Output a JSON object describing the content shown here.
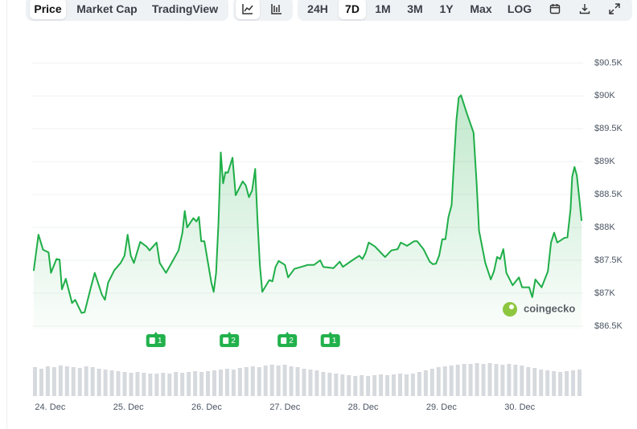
{
  "toolbar": {
    "views": [
      "Price",
      "Market Cap",
      "TradingView"
    ],
    "selected_view": 0,
    "ranges": [
      "24H",
      "7D",
      "1M",
      "3M",
      "1Y",
      "Max",
      "LOG"
    ],
    "selected_range": 1
  },
  "chart_data": {
    "type": "line",
    "color": "#1fae48",
    "grid": true,
    "watermark": "coingecko",
    "xlim": [
      23.77,
      30.81
    ],
    "ylim": [
      86450,
      90700
    ],
    "yticks": [
      {
        "value": 86500,
        "label": "$86.5K"
      },
      {
        "value": 87000,
        "label": "$87K"
      },
      {
        "value": 87500,
        "label": "$87.5K"
      },
      {
        "value": 88000,
        "label": "$88K"
      },
      {
        "value": 88500,
        "label": "$88.5K"
      },
      {
        "value": 89000,
        "label": "$89K"
      },
      {
        "value": 89500,
        "label": "$89.5K"
      },
      {
        "value": 90000,
        "label": "$90K"
      },
      {
        "value": 90500,
        "label": "$90.5K"
      }
    ],
    "xticks": [
      {
        "value": 24,
        "label": "24. Dec"
      },
      {
        "value": 25,
        "label": "25. Dec"
      },
      {
        "value": 26,
        "label": "26. Dec"
      },
      {
        "value": 27,
        "label": "27. Dec"
      },
      {
        "value": 28,
        "label": "28. Dec"
      },
      {
        "value": 29,
        "label": "29. Dec"
      },
      {
        "value": 30,
        "label": "30. Dec"
      }
    ],
    "x": [
      23.79,
      23.85,
      23.91,
      23.98,
      24.01,
      24.08,
      24.12,
      24.15,
      24.2,
      24.28,
      24.32,
      24.4,
      24.44,
      24.52,
      24.57,
      24.66,
      24.7,
      24.74,
      24.82,
      24.9,
      24.95,
      24.99,
      25.03,
      25.07,
      25.15,
      25.23,
      25.27,
      25.36,
      25.4,
      25.48,
      25.56,
      25.64,
      25.69,
      25.72,
      25.75,
      25.83,
      25.87,
      25.9,
      25.93,
      25.97,
      26.06,
      26.09,
      26.12,
      26.15,
      26.18,
      26.21,
      26.24,
      26.27,
      26.33,
      26.37,
      26.46,
      26.5,
      26.54,
      26.58,
      26.62,
      26.65,
      26.68,
      26.71,
      26.8,
      26.84,
      26.88,
      26.92,
      27.0,
      27.04,
      27.12,
      27.21,
      27.29,
      27.37,
      27.45,
      27.49,
      27.62,
      27.7,
      27.74,
      27.86,
      27.95,
      27.99,
      28.03,
      28.07,
      28.15,
      28.23,
      28.28,
      28.36,
      28.44,
      28.48,
      28.56,
      28.65,
      28.69,
      28.77,
      28.85,
      28.89,
      28.93,
      28.97,
      29.01,
      29.05,
      29.09,
      29.13,
      29.16,
      29.19,
      29.22,
      29.25,
      29.32,
      29.41,
      29.45,
      29.48,
      29.56,
      29.63,
      29.67,
      29.71,
      29.75,
      29.79,
      29.83,
      29.91,
      29.99,
      30.03,
      30.12,
      30.16,
      30.2,
      30.28,
      30.36,
      30.4,
      30.44,
      30.48,
      30.57,
      30.61,
      30.65,
      30.67,
      30.7,
      30.73,
      30.76,
      30.79
    ],
    "values": [
      87340,
      87890,
      87660,
      87620,
      87310,
      87520,
      87510,
      87060,
      87220,
      86850,
      86900,
      86700,
      86710,
      87090,
      87310,
      86980,
      86900,
      87160,
      87350,
      87460,
      87570,
      87890,
      87570,
      87460,
      87780,
      87710,
      87650,
      87770,
      87460,
      87310,
      87480,
      87650,
      87920,
      88250,
      88000,
      88140,
      88090,
      88160,
      87790,
      87790,
      87160,
      87020,
      87310,
      88060,
      89140,
      88670,
      88840,
      88830,
      89060,
      88490,
      88700,
      88640,
      88460,
      88560,
      88890,
      88100,
      87430,
      87020,
      87200,
      87180,
      87400,
      87490,
      87430,
      87240,
      87370,
      87400,
      87430,
      87430,
      87500,
      87400,
      87380,
      87480,
      87400,
      87500,
      87570,
      87520,
      87610,
      87770,
      87710,
      87610,
      87550,
      87650,
      87670,
      87770,
      87720,
      87790,
      87790,
      87670,
      87480,
      87440,
      87450,
      87570,
      87820,
      87820,
      88160,
      88340,
      89010,
      89620,
      89970,
      90010,
      89750,
      89440,
      88650,
      87950,
      87460,
      87210,
      87330,
      87550,
      87520,
      87670,
      87310,
      87120,
      87240,
      87090,
      87090,
      86940,
      87210,
      87090,
      87330,
      87770,
      87920,
      87770,
      87840,
      87850,
      88280,
      88770,
      88920,
      88790,
      88460,
      88100
    ],
    "volume": {
      "color": "#d6d9dd",
      "ylim": [
        0,
        40
      ],
      "values": [
        36,
        34,
        37,
        36,
        38,
        37,
        36,
        35,
        37,
        36,
        34,
        33,
        32,
        31,
        30,
        29,
        30,
        29,
        28,
        28,
        29,
        28,
        30,
        29,
        30,
        31,
        30,
        31,
        32,
        33,
        34,
        33,
        35,
        36,
        37,
        36,
        38,
        39,
        38,
        39,
        37,
        36,
        34,
        33,
        32,
        30,
        29,
        28,
        27,
        26,
        25,
        26,
        25,
        26,
        27,
        26,
        27,
        28,
        27,
        28,
        30,
        32,
        34,
        36,
        37,
        38,
        39,
        40,
        40,
        41,
        40,
        41,
        40,
        39,
        40,
        39,
        38,
        36,
        35,
        33,
        32,
        31,
        30,
        31,
        32,
        33
      ]
    },
    "events": [
      {
        "x": 25.35,
        "count": 1
      },
      {
        "x": 26.29,
        "count": 2
      },
      {
        "x": 27.03,
        "count": 2
      },
      {
        "x": 27.58,
        "count": 1
      }
    ]
  }
}
